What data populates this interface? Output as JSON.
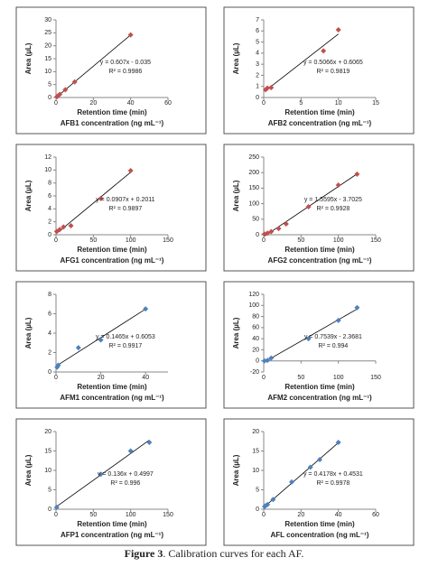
{
  "chart_data": [
    {
      "type": "scatter",
      "title": "AFB1 concentration (ng mL⁻¹)",
      "xlabel": "Retention time (min)",
      "ylabel": "Area (µL)",
      "equation": "y = 0.607x - 0.035",
      "r_squared": "R² = 0.9986",
      "color": "#c0504d",
      "x": [
        0.5,
        1,
        2,
        5,
        10,
        40
      ],
      "y": [
        0.3,
        0.6,
        1.2,
        3.0,
        6.0,
        24.2
      ],
      "xlim": [
        0,
        60
      ],
      "xticks": [
        0,
        20,
        40,
        60
      ],
      "ylim": [
        0,
        30
      ],
      "yticks": [
        0,
        5,
        10,
        15,
        20,
        25,
        30
      ]
    },
    {
      "type": "scatter",
      "title": "AFB2 concentration (ng mL⁻¹)",
      "xlabel": "Retention time (min)",
      "ylabel": "Area (µL)",
      "equation": "y = 0.5066x + 0.6065",
      "r_squared": "R² = 0.9819",
      "color": "#c0504d",
      "x": [
        0.25,
        0.5,
        1,
        8,
        10
      ],
      "y": [
        0.7,
        0.85,
        0.9,
        4.2,
        6.1
      ],
      "xlim": [
        0,
        15
      ],
      "xticks": [
        0,
        5,
        10,
        15
      ],
      "ylim": [
        0,
        7
      ],
      "yticks": [
        0,
        1,
        2,
        3,
        4,
        5,
        6,
        7
      ]
    },
    {
      "type": "scatter",
      "title": "AFG1 concentration (ng mL⁻¹)",
      "xlabel": "Retention time (min)",
      "ylabel": "Area (µL)",
      "equation": "y = 0.0907x + 0.2011",
      "r_squared": "R² = 0.9897",
      "color": "#c0504d",
      "x": [
        1,
        5,
        10,
        20,
        60,
        100
      ],
      "y": [
        0.5,
        0.8,
        1.2,
        1.4,
        5.6,
        9.9
      ],
      "xlim": [
        0,
        150
      ],
      "xticks": [
        0,
        50,
        100,
        150
      ],
      "ylim": [
        0,
        12
      ],
      "yticks": [
        0,
        2,
        4,
        6,
        8,
        10,
        12
      ]
    },
    {
      "type": "scatter",
      "title": "AFG2 concentration (ng mL⁻¹)",
      "xlabel": "Retention time (min)",
      "ylabel": "Area (µL)",
      "equation": "y = 1.5595x - 3.7025",
      "r_squared": "R² = 0.9928",
      "color": "#c0504d",
      "x": [
        1,
        5,
        10,
        20,
        30,
        60,
        100,
        125
      ],
      "y": [
        2,
        5,
        10,
        20,
        35,
        90,
        160,
        195
      ],
      "xlim": [
        0,
        150
      ],
      "xticks": [
        0,
        50,
        100,
        150
      ],
      "ylim": [
        0,
        250
      ],
      "yticks": [
        0,
        50,
        100,
        150,
        200,
        250
      ]
    },
    {
      "type": "scatter",
      "title": "AFM1 concentration (ng mL⁻¹)",
      "xlabel": "Retention time (min)",
      "ylabel": "Area (µL)",
      "equation": "y = 0.1465x + 0.6053",
      "r_squared": "R² = 0.9917",
      "color": "#4f81bd",
      "x": [
        0.5,
        1,
        10,
        20,
        40
      ],
      "y": [
        0.5,
        0.7,
        2.5,
        3.3,
        6.5
      ],
      "xlim": [
        0,
        50
      ],
      "xticks": [
        0,
        20,
        40
      ],
      "ylim": [
        0,
        8
      ],
      "yticks": [
        0,
        2,
        4,
        6,
        8
      ]
    },
    {
      "type": "scatter",
      "title": "AFM2 concentration (ng mL⁻¹)",
      "xlabel": "Retention time (min)",
      "ylabel": "Area (µL)",
      "equation": "y = 0.7539x - 2.3681",
      "r_squared": "R² = 0.994",
      "color": "#4f81bd",
      "x": [
        1,
        5,
        10,
        60,
        100,
        125
      ],
      "y": [
        0,
        1,
        5,
        40,
        73,
        96
      ],
      "xlim": [
        0,
        150
      ],
      "xticks": [
        0,
        50,
        100,
        150
      ],
      "ylim": [
        -20,
        120
      ],
      "yticks": [
        -20,
        0,
        20,
        40,
        60,
        80,
        100,
        120
      ]
    },
    {
      "type": "scatter",
      "title": "AFP1 concentration (ng mL⁻¹)",
      "xlabel": "Retention time (min)",
      "ylabel": "Area (µL)",
      "equation": "y = 0.136x + 0.4997",
      "r_squared": "R² = 0.996",
      "color": "#4f81bd",
      "x": [
        1,
        60,
        100,
        125
      ],
      "y": [
        0.5,
        9,
        15,
        17.2
      ],
      "xlim": [
        0,
        150
      ],
      "xticks": [
        0,
        50,
        100,
        150
      ],
      "ylim": [
        0,
        20
      ],
      "yticks": [
        0,
        5,
        10,
        15,
        20
      ]
    },
    {
      "type": "scatter",
      "title": "AFL concentration (ng mL⁻¹)",
      "xlabel": "Retention time (min)",
      "ylabel": "Area (µL)",
      "equation": "y = 0.4178x + 0.4531",
      "r_squared": "R² = 0.9978",
      "color": "#4f81bd",
      "x": [
        0.5,
        1,
        2,
        5,
        15,
        25,
        30,
        40
      ],
      "y": [
        0.7,
        0.9,
        1.2,
        2.5,
        7,
        10.8,
        12.8,
        17.2
      ],
      "xlim": [
        0,
        60
      ],
      "xticks": [
        0,
        20,
        40,
        60
      ],
      "ylim": [
        0,
        20
      ],
      "yticks": [
        0,
        5,
        10,
        15,
        20
      ]
    }
  ],
  "caption": {
    "label": "Figure 3",
    "text": ". Calibration curves for each AF."
  }
}
